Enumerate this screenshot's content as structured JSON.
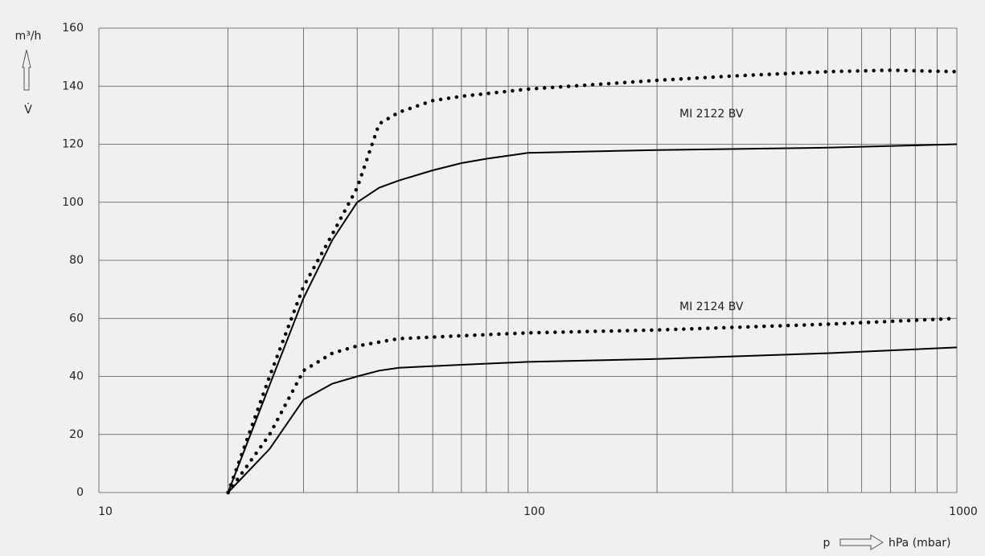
{
  "chart_data": {
    "type": "line",
    "y_label": "m³/h",
    "y_symbol": "V̇",
    "x_label": "p",
    "x_unit": "hPa (mbar)",
    "annotations": [
      "MI 2122 BV",
      "MI 2124 BV"
    ],
    "xscale": "log",
    "xlim": [
      10,
      1000
    ],
    "xticks": [
      10,
      100,
      1000
    ],
    "xminor": [
      20,
      30,
      40,
      50,
      60,
      70,
      80,
      90,
      200,
      300,
      400,
      500,
      600,
      700,
      800,
      900
    ],
    "ylim": [
      0,
      160
    ],
    "yticks": [
      0,
      20,
      40,
      60,
      80,
      100,
      120,
      140,
      160
    ],
    "grid": true,
    "series": [
      {
        "style": "dotted",
        "color": "#000000",
        "x": [
          20,
          25,
          30,
          35,
          40,
          45,
          50,
          60,
          70,
          100,
          200,
          300,
          500,
          700,
          1000
        ],
        "values": [
          0,
          40,
          71,
          89,
          105,
          127,
          131,
          135,
          136.5,
          139,
          142,
          143.5,
          145,
          145.5,
          145
        ]
      },
      {
        "style": "solid",
        "color": "#000000",
        "x": [
          20,
          25,
          30,
          35,
          40,
          45,
          50,
          60,
          70,
          80,
          100,
          200,
          500,
          1000
        ],
        "values": [
          0,
          37,
          67,
          87,
          100,
          105,
          107.5,
          111,
          113.5,
          115,
          117,
          118,
          118.8,
          120
        ]
      },
      {
        "style": "dotted",
        "color": "#000000",
        "x": [
          20,
          25,
          30,
          35,
          40,
          50,
          70,
          100,
          200,
          500,
          1000
        ],
        "values": [
          0,
          20,
          42,
          48,
          50.5,
          53,
          54,
          55,
          56,
          58,
          60
        ]
      },
      {
        "style": "solid",
        "color": "#000000",
        "x": [
          20,
          25,
          30,
          35,
          40,
          45,
          50,
          70,
          100,
          200,
          500,
          1000
        ],
        "values": [
          0,
          15,
          32,
          37.5,
          40,
          42,
          43,
          44,
          45,
          46,
          48,
          50
        ]
      }
    ]
  }
}
